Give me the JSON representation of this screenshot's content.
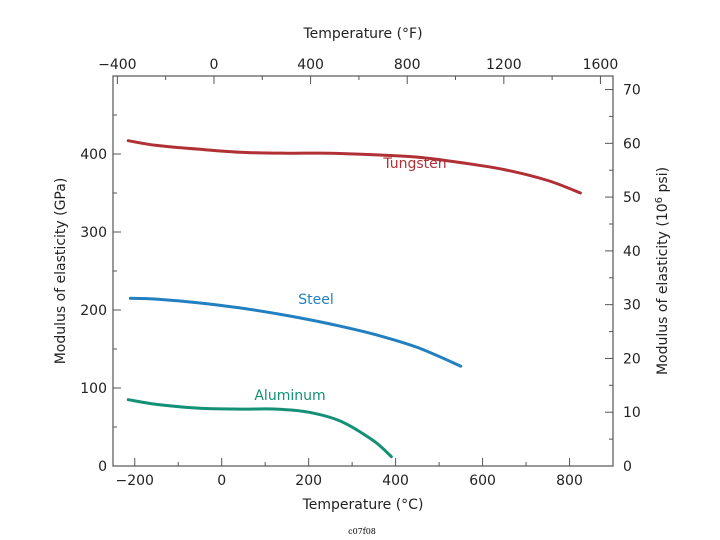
{
  "chart_data": {
    "type": "line",
    "xlabel": "Temperature (°C)",
    "ylabel": "Modulus of elasticity (GPa)",
    "x2label": "Temperature (°F)",
    "y2label_main": "Modulus of elasticity (10",
    "y2label_sup": "6",
    "y2label_end": " psi)",
    "caption": "c07f08",
    "xlim": [
      -250,
      900
    ],
    "ylim": [
      0,
      500
    ],
    "x_ticks": [
      -200,
      0,
      200,
      400,
      600,
      800
    ],
    "y_ticks": [
      0,
      100,
      200,
      300,
      400
    ],
    "x2_ticks": [
      -400,
      0,
      400,
      800,
      1200,
      1600
    ],
    "y2_ticks": [
      0,
      10,
      20,
      30,
      40,
      50,
      60,
      70
    ],
    "series": [
      {
        "name": "Tungsten",
        "color": "#b03036",
        "x": [
          -215,
          -150,
          -50,
          50,
          150,
          250,
          350,
          450,
          550,
          650,
          750,
          825
        ],
        "y": [
          417,
          411,
          406,
          402,
          401,
          401,
          399,
          396,
          389,
          380,
          366,
          350
        ]
      },
      {
        "name": "Steel",
        "color": "#2280c0",
        "x": [
          -210,
          -150,
          -50,
          50,
          150,
          250,
          350,
          450,
          550
        ],
        "y": [
          215,
          214,
          209,
          202,
          193,
          182,
          169,
          152,
          128
        ]
      },
      {
        "name": "Aluminum",
        "color": "#139075",
        "x": [
          -215,
          -150,
          -50,
          50,
          125,
          200,
          275,
          350,
          390
        ],
        "y": [
          85,
          79,
          74,
          73,
          73,
          69,
          57,
          32,
          12
        ]
      }
    ]
  }
}
